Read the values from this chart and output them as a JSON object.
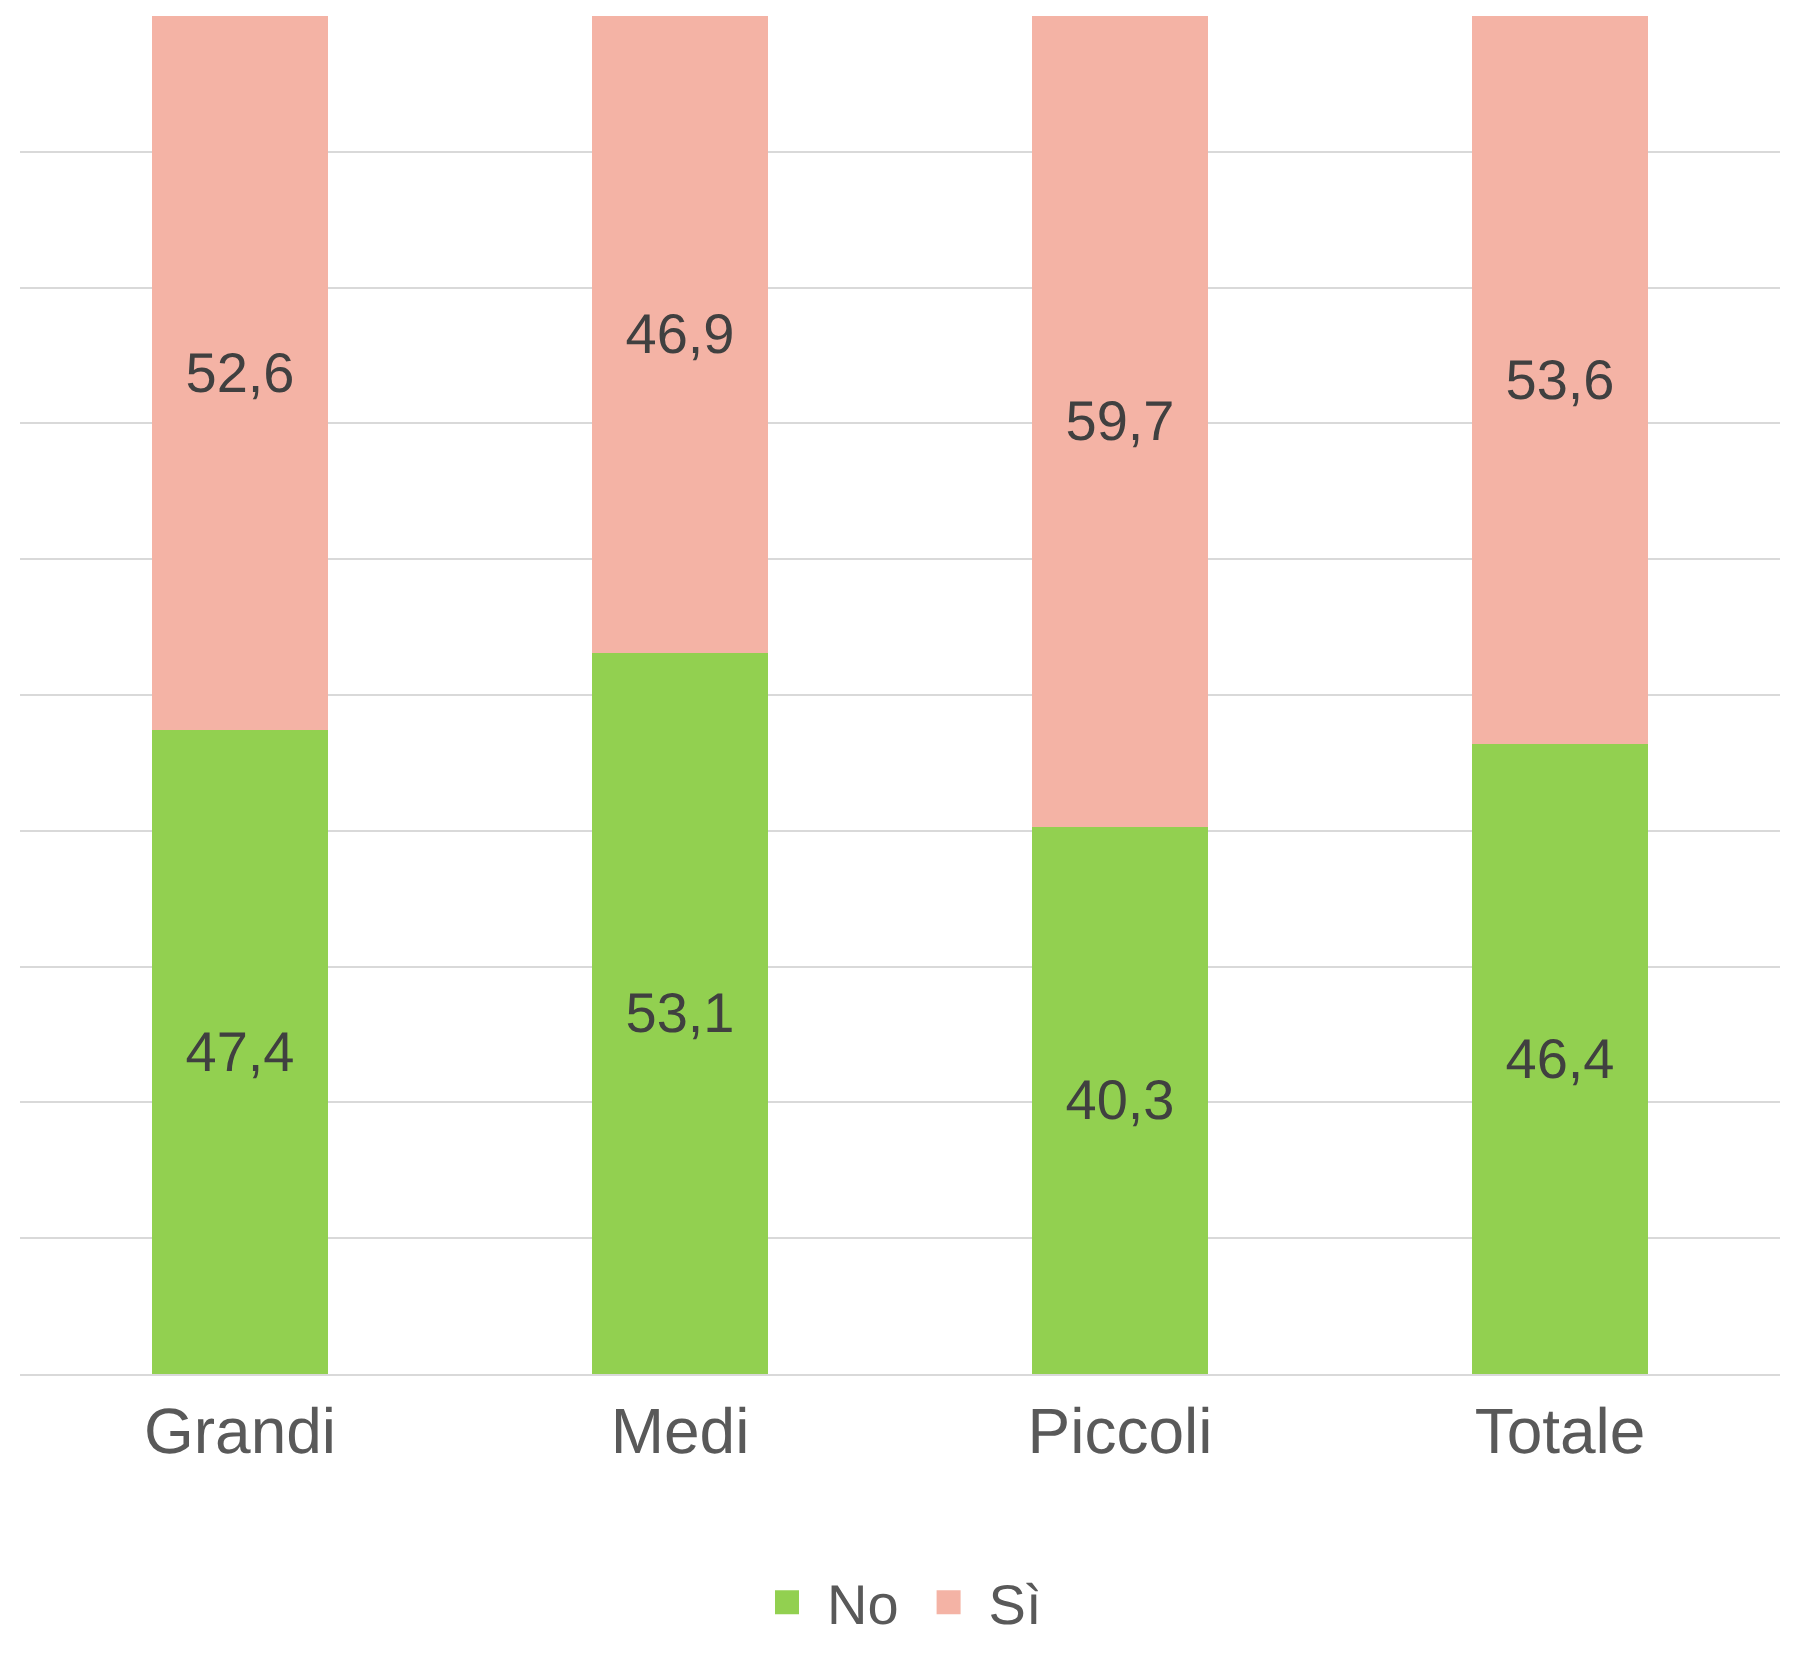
{
  "chart_data": {
    "type": "bar",
    "stacked": true,
    "categories": [
      "Grandi",
      "Medi",
      "Piccoli",
      "Totale"
    ],
    "series": [
      {
        "name": "No",
        "color": "#92d050",
        "values": [
          47.4,
          53.1,
          40.3,
          46.4
        ],
        "value_labels": [
          "47,4",
          "53,1",
          "40,3",
          "46,4"
        ]
      },
      {
        "name": "Sì",
        "color": "#f4b3a5",
        "values": [
          52.6,
          46.9,
          59.7,
          53.6
        ],
        "value_labels": [
          "52,6",
          "46,9",
          "59,7",
          "53,6"
        ]
      }
    ],
    "ylim": [
      0,
      100
    ],
    "yticks": [
      {
        "value": 10,
        "label": null
      },
      {
        "value": 20,
        "label": null
      },
      {
        "value": 30,
        "label": null
      },
      {
        "value": 40,
        "label": null
      },
      {
        "value": 50,
        "label": null
      },
      {
        "value": 60,
        "label": null
      },
      {
        "value": 70,
        "label": null
      },
      {
        "value": 80,
        "label": null
      },
      {
        "value": 90,
        "label": null
      }
    ],
    "tick_labels": "x",
    "grid": "y",
    "legend": "bottom"
  }
}
